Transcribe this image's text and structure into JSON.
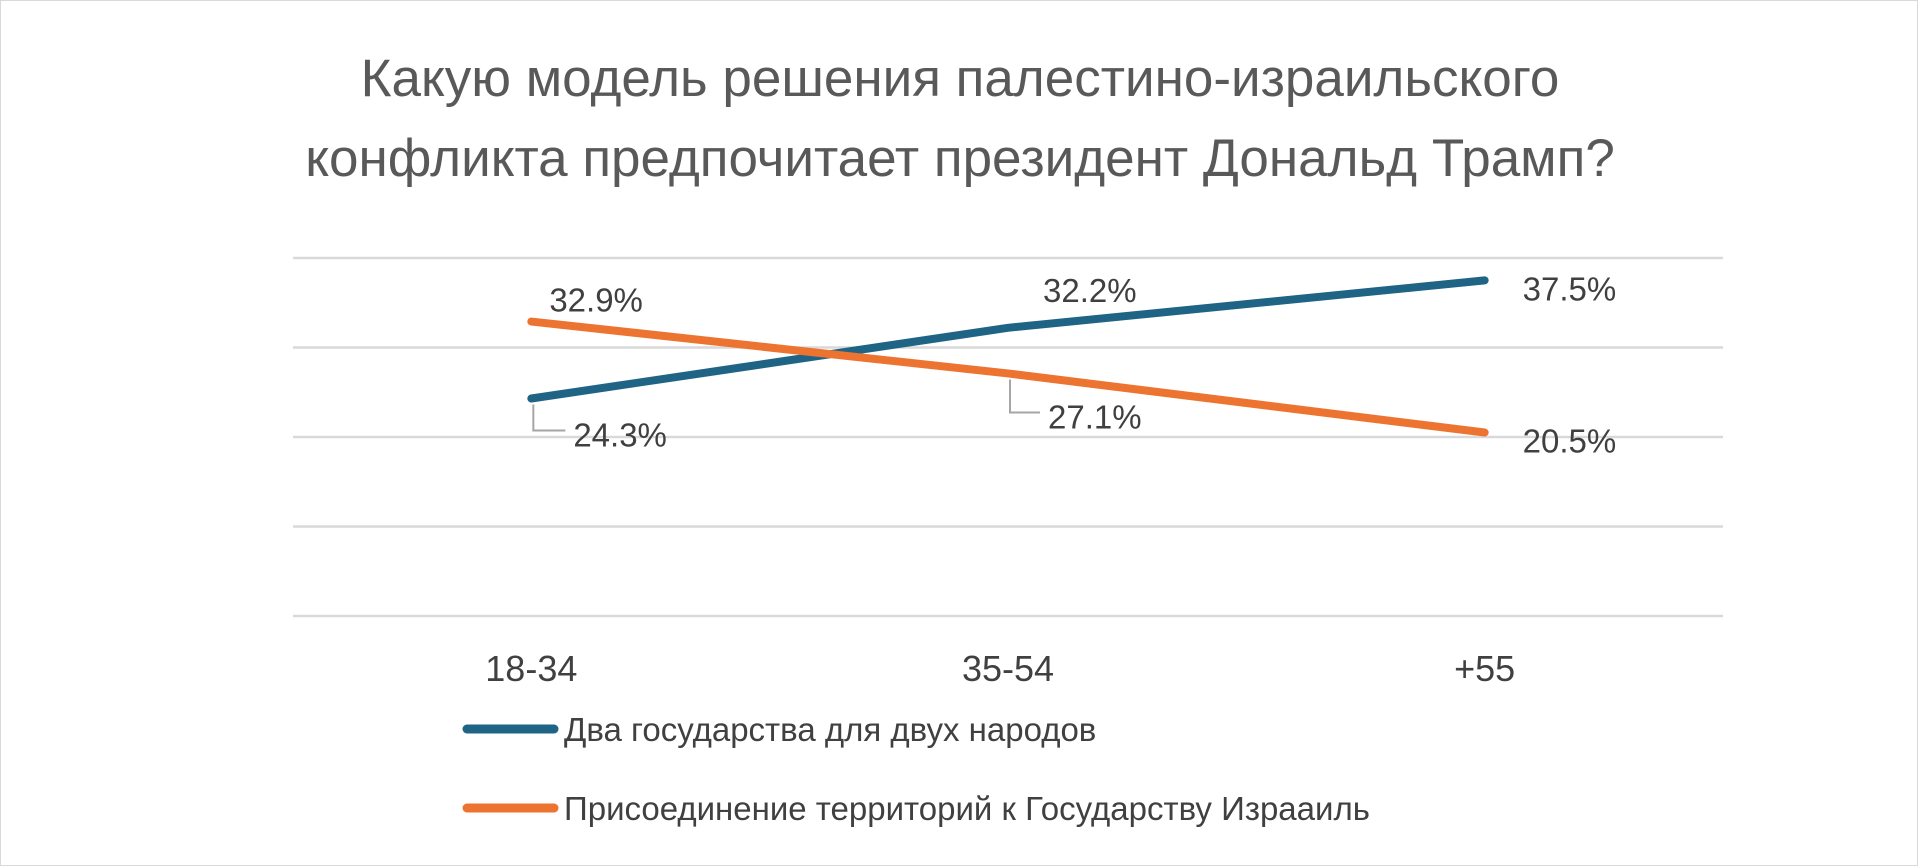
{
  "chart_data": {
    "type": "line",
    "title_lines": [
      "Какую модель решения палестино-израильского",
      "конфликта предпочитает президент Дональд Трамп?"
    ],
    "categories": [
      "18-34",
      "35-54",
      "+55"
    ],
    "series": [
      {
        "name": "Два государства для двух народов",
        "color": "#1f6485",
        "values": [
          24.3,
          32.2,
          37.5
        ],
        "labels": [
          "24.3%",
          "32.2%",
          "37.5%"
        ]
      },
      {
        "name": "Присоединение территорий к Государству Израаиль",
        "color": "#ed7331",
        "values": [
          32.9,
          27.1,
          20.5
        ],
        "labels": [
          "32.9%",
          "27.1%",
          "20.5%"
        ]
      }
    ],
    "ylim": [
      0,
      40
    ],
    "gridlines": [
      0,
      10,
      20,
      30,
      40
    ],
    "grid": true,
    "xlabel": "",
    "ylabel": "",
    "legend_position": "bottom"
  }
}
